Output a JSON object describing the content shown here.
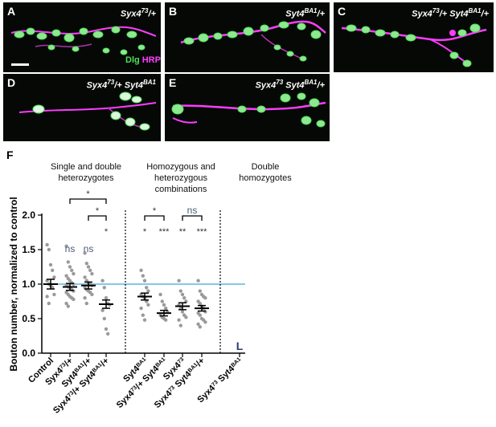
{
  "panels": [
    {
      "label": "A",
      "genotype_html": "Syx4<sup>73</sup>/+"
    },
    {
      "label": "B",
      "genotype_html": "Syt4<sup>BA1</sup>/+"
    },
    {
      "label": "C",
      "genotype_html": "Syx4<sup>73</sup>/+ Syt4<sup>BA1</sup>/+"
    },
    {
      "label": "D",
      "genotype_html": "Syx4<sup>73</sup>/+ Syt4<sup>BA1</sup>"
    },
    {
      "label": "E",
      "genotype_html": "Syx4<sup>73</sup> Syt4<sup>BA1</sup>/+"
    }
  ],
  "legend": {
    "dlg": "Dlg",
    "hrp": "HRP"
  },
  "colors": {
    "dlg": "#4ee05a",
    "hrp": "#ff3cff",
    "control_line": "#38a9d6",
    "points": "#9a9a9a",
    "mean": "#000000",
    "sig": "#333333",
    "ns": "#4a5a78"
  },
  "figure_label": "F",
  "groups": [
    {
      "title": "Single and double heterozygotes"
    },
    {
      "title": "Homozygous and heterozygous combinations"
    },
    {
      "title": "Double homozygotes"
    }
  ],
  "chart_data": {
    "type": "scatter",
    "ylabel": "Bouton number, normalized to control",
    "ylim": [
      0,
      2.0
    ],
    "yticks": [
      "0.0",
      "0.5",
      "1.0",
      "1.5",
      "2.0"
    ],
    "reference_line": 1.0,
    "categories_html": [
      "Control",
      "Syx4<tspan baseline-shift='super' font-size='7'>73</tspan>/+",
      "Syt4<tspan baseline-shift='super' font-size='7'>BA1</tspan>/+",
      "Syx4<tspan baseline-shift='super' font-size='7'>73</tspan>/+ Syt4<tspan baseline-shift='super' font-size='7'>BA1</tspan>/+",
      "Syt4<tspan baseline-shift='super' font-size='7'>BA1</tspan>",
      "Syx4<tspan baseline-shift='super' font-size='7'>73</tspan>/+ Syt4<tspan baseline-shift='super' font-size='7'>BA1</tspan>",
      "Syx4<tspan baseline-shift='super' font-size='7'>73</tspan>",
      "Syx4<tspan baseline-shift='super' font-size='7'>73</tspan> Syt4<tspan baseline-shift='super' font-size='7'>BA1</tspan>/+",
      "Syx4<tspan baseline-shift='super' font-size='7'>73</tspan> Syt4<tspan baseline-shift='super' font-size='7'>BA1</tspan>"
    ],
    "series": [
      {
        "mean": 1.0,
        "sem": 0.07,
        "points": [
          1.57,
          1.5,
          1.28,
          1.2,
          1.1,
          1.05,
          1.0,
          0.98,
          0.95,
          0.85,
          0.82,
          0.72
        ]
      },
      {
        "mean": 0.96,
        "sem": 0.05,
        "points": [
          1.55,
          1.32,
          1.25,
          1.2,
          1.15,
          1.12,
          1.08,
          1.05,
          1.02,
          1.0,
          0.98,
          0.96,
          0.95,
          0.92,
          0.9,
          0.88,
          0.85,
          0.82,
          0.8,
          0.78,
          0.72,
          0.68
        ]
      },
      {
        "mean": 0.98,
        "sem": 0.05,
        "points": [
          1.45,
          1.3,
          1.25,
          1.2,
          1.15,
          1.1,
          1.05,
          1.02,
          1.0,
          0.98,
          0.95,
          0.92,
          0.9,
          0.88,
          0.85,
          0.8,
          0.72
        ]
      },
      {
        "mean": 0.71,
        "sem": 0.06,
        "points": [
          1.05,
          0.95,
          0.8,
          0.72,
          0.7,
          0.62,
          0.5,
          0.35,
          0.28
        ]
      },
      {
        "mean": 0.82,
        "sem": 0.05,
        "points": [
          1.2,
          1.12,
          1.05,
          0.95,
          0.9,
          0.85,
          0.82,
          0.8,
          0.75,
          0.7,
          0.65,
          0.55,
          0.48
        ]
      },
      {
        "mean": 0.58,
        "sem": 0.04,
        "points": [
          0.85,
          0.75,
          0.7,
          0.65,
          0.6,
          0.55,
          0.52,
          0.5,
          0.48
        ]
      },
      {
        "mean": 0.68,
        "sem": 0.05,
        "points": [
          1.05,
          0.9,
          0.85,
          0.8,
          0.75,
          0.7,
          0.65,
          0.6,
          0.55,
          0.52,
          0.48,
          0.4
        ]
      },
      {
        "mean": 0.65,
        "sem": 0.04,
        "points": [
          1.05,
          0.9,
          0.85,
          0.82,
          0.8,
          0.75,
          0.72,
          0.68,
          0.65,
          0.6,
          0.58,
          0.55,
          0.5,
          0.48,
          0.45,
          0.42,
          0.38
        ]
      },
      {
        "mean": null,
        "sem": null,
        "points": [],
        "marker": "L"
      }
    ],
    "annotations": [
      {
        "text": "ns",
        "category": 1,
        "kind": "ns"
      },
      {
        "text": "ns",
        "category": 2,
        "kind": "ns"
      },
      {
        "text": "*",
        "category": 3,
        "kind": "sig"
      },
      {
        "text": "*",
        "category": 4,
        "kind": "sig"
      },
      {
        "text": "***",
        "category": 5,
        "kind": "sig"
      },
      {
        "text": "**",
        "category": 6,
        "kind": "sig"
      },
      {
        "text": "***",
        "category": 7,
        "kind": "sig"
      }
    ],
    "brackets": [
      {
        "from": 1,
        "to": 3,
        "text": "*",
        "level": 0
      },
      {
        "from": 2,
        "to": 3,
        "text": "*",
        "level": 1
      },
      {
        "from": 4,
        "to": 5,
        "text": "*",
        "level": 1
      },
      {
        "from": 6,
        "to": 7,
        "text": "ns",
        "level": 1
      }
    ]
  }
}
